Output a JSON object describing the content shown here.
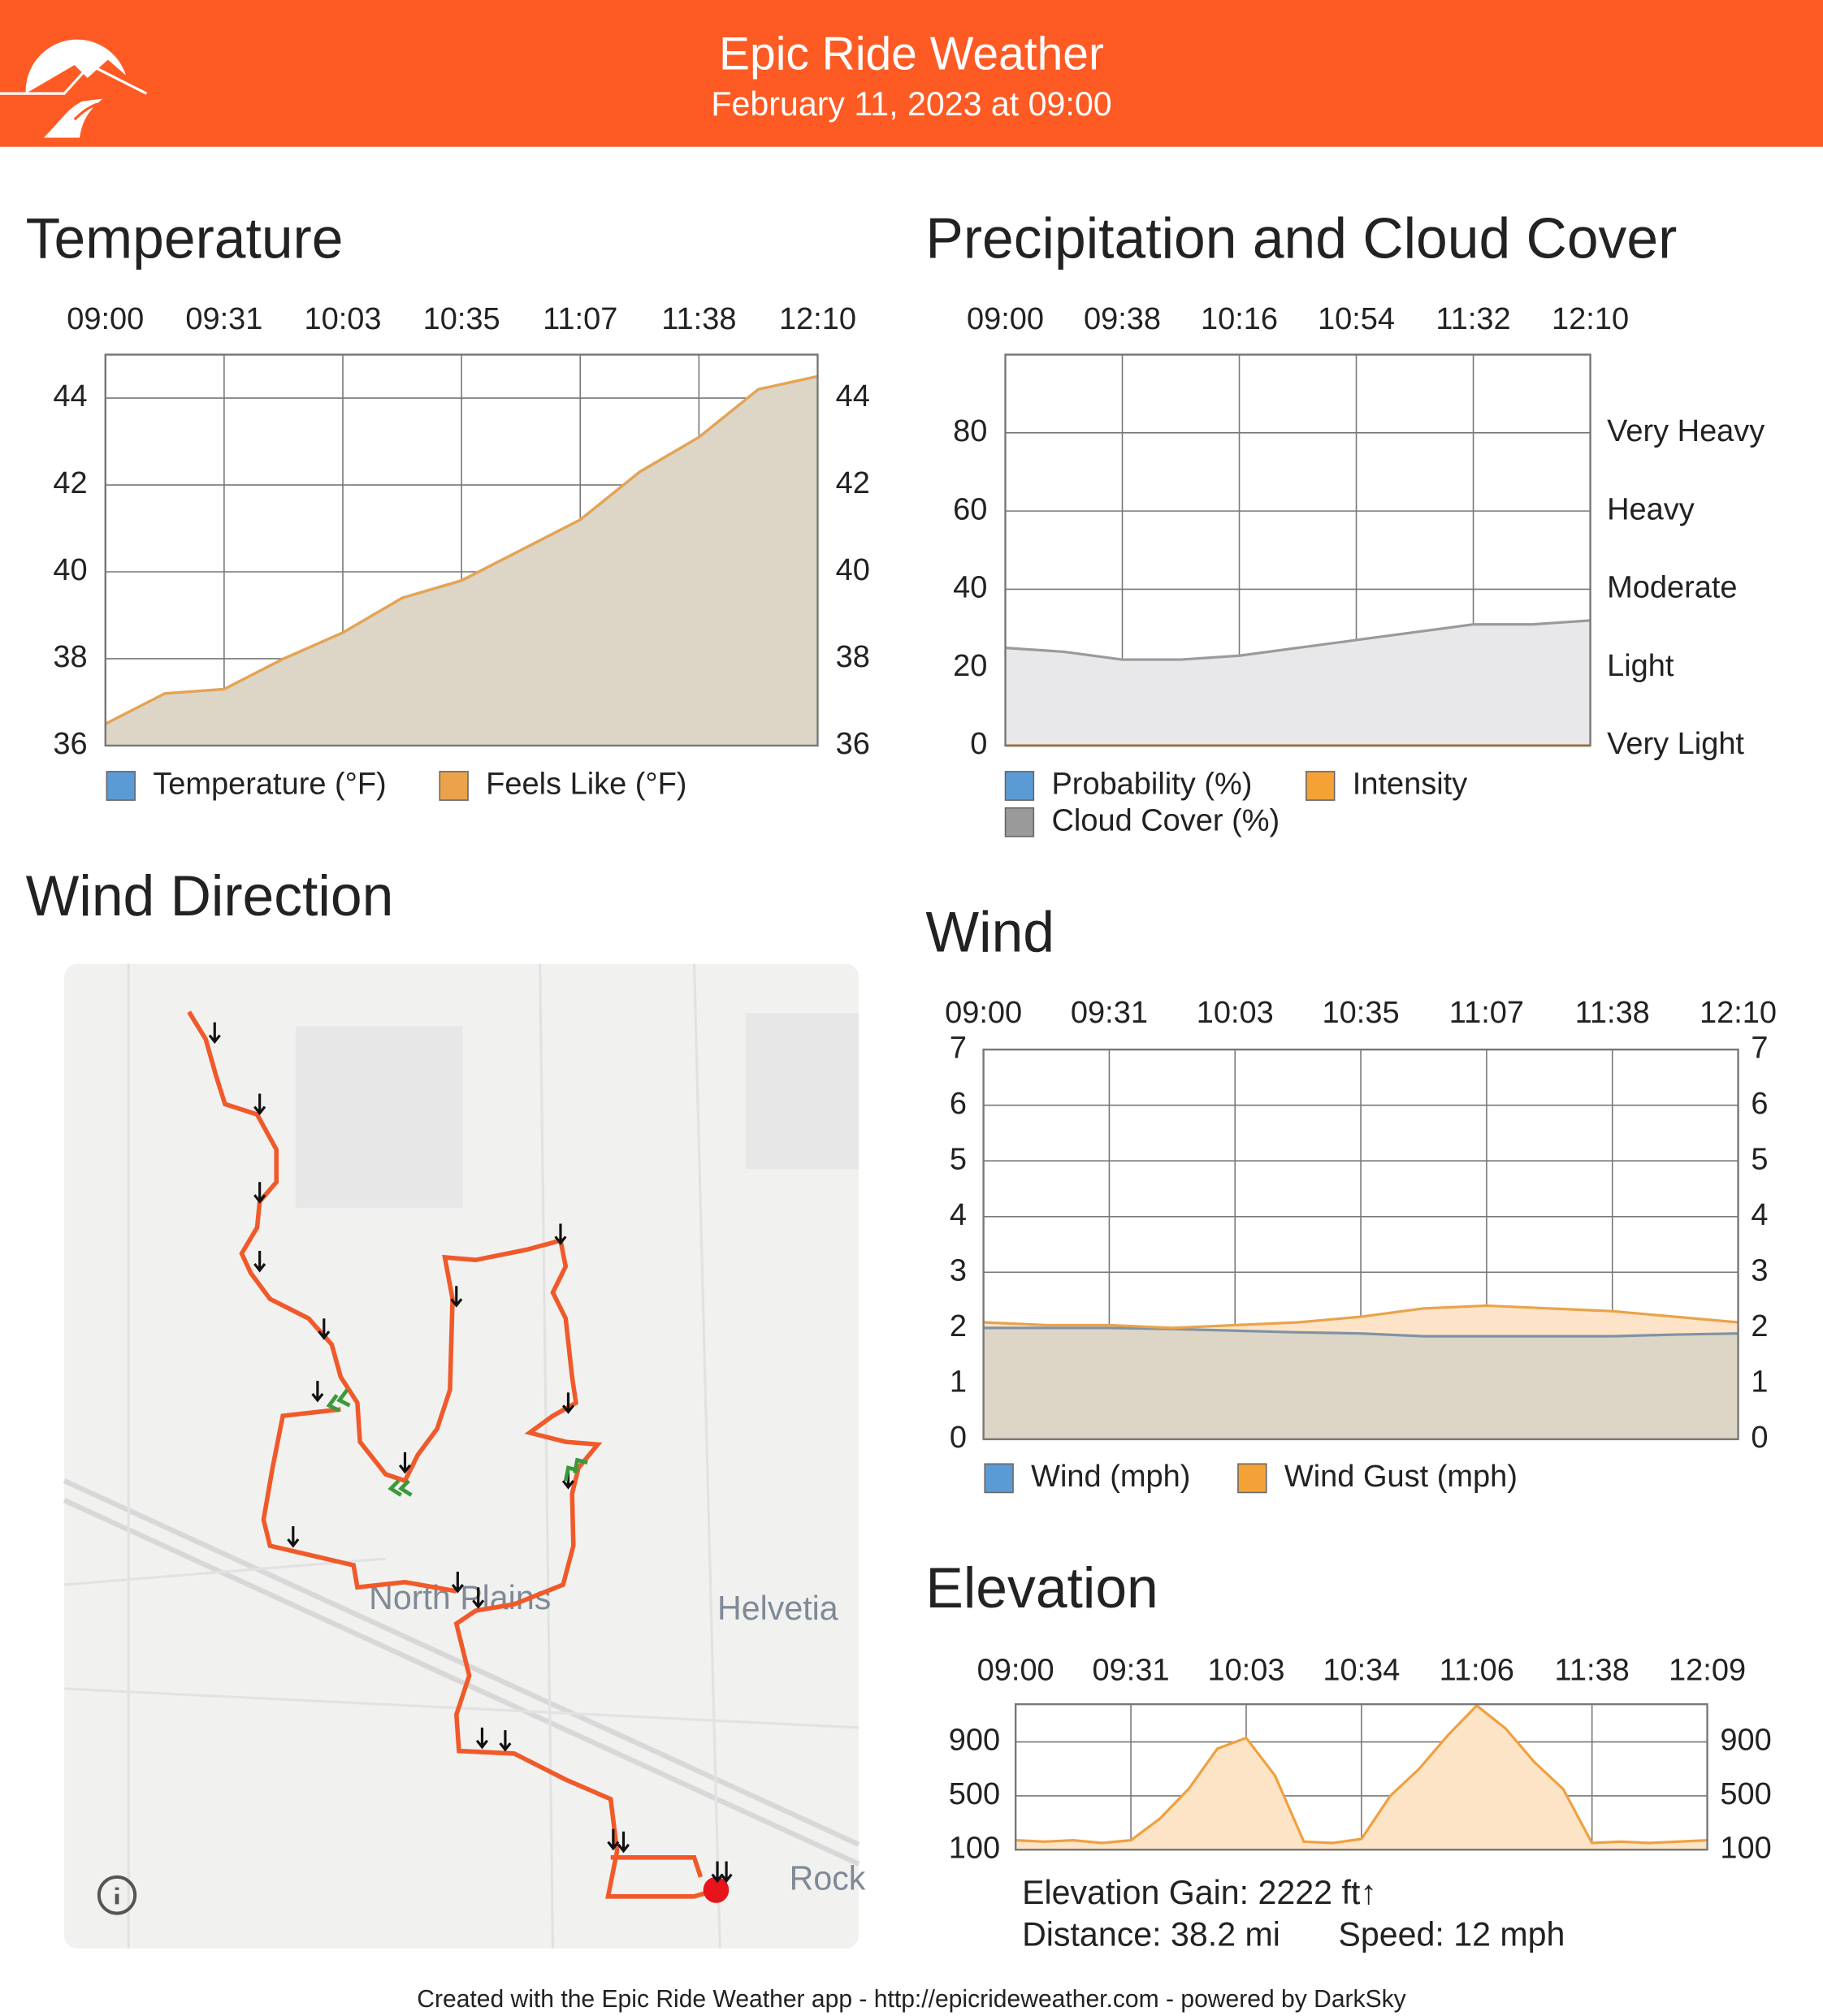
{
  "header": {
    "title": "Epic Ride Weather",
    "subtitle": "February 11, 2023 at 09:00"
  },
  "footer": "Created with the Epic Ride Weather app - http://epicrideweather.com - powered by DarkSky",
  "map": {
    "title": "Wind Direction",
    "labels": [
      "North Plains",
      "Helvetia",
      "Rock"
    ]
  },
  "chart_data": [
    {
      "type": "area",
      "title": "Temperature",
      "categories": [
        "09:00",
        null,
        "09:31",
        null,
        "10:03",
        null,
        "10:35",
        null,
        "11:07",
        null,
        "11:38",
        null,
        "12:10"
      ],
      "series": [
        {
          "name": "Temperature (°F)",
          "color": "#5b9bd5",
          "fill": "#ddd5c5",
          "values": [
            36.5,
            37.2,
            37.3,
            38.0,
            38.6,
            39.4,
            39.8,
            40.5,
            41.2,
            42.3,
            43.1,
            44.2,
            44.5
          ]
        },
        {
          "name": "Feels Like (°F)",
          "color": "#eaa34a",
          "fill": "#ddd5c5",
          "values": [
            36.5,
            37.2,
            37.3,
            38.0,
            38.6,
            39.4,
            39.8,
            40.5,
            41.2,
            42.3,
            43.1,
            44.2,
            44.5
          ]
        }
      ],
      "ylim": [
        36,
        45
      ],
      "yticks": [
        36,
        38,
        40,
        42,
        44
      ],
      "grid": true
    },
    {
      "type": "area",
      "title": "Precipitation and Cloud Cover",
      "categories": [
        "09:00",
        null,
        "09:38",
        null,
        "10:16",
        null,
        "10:54",
        null,
        "11:32",
        null,
        "12:10"
      ],
      "series": [
        {
          "name": "Probability (%)",
          "color": "#5b9bd5",
          "values": [
            0,
            0,
            0,
            0,
            0,
            0,
            0,
            0,
            0,
            0,
            0
          ]
        },
        {
          "name": "Intensity",
          "color": "#f4a236",
          "axis": "y2",
          "values": [
            0,
            0,
            0,
            0,
            0,
            0,
            0,
            0,
            0,
            0,
            0
          ]
        },
        {
          "name": "Cloud Cover (%)",
          "color": "#9a9a9a",
          "fill": "#e8e8ea",
          "values": [
            25,
            24,
            22,
            22,
            23,
            25,
            27,
            29,
            31,
            31,
            32
          ]
        }
      ],
      "ylim": [
        0,
        100
      ],
      "yticks": [
        0,
        20,
        40,
        60,
        80
      ],
      "y2lim": [
        0,
        100
      ],
      "y2ticks": [
        {
          "value": 0,
          "label": "Very Light"
        },
        {
          "value": 20,
          "label": "Light"
        },
        {
          "value": 40,
          "label": "Moderate"
        },
        {
          "value": 60,
          "label": "Heavy"
        },
        {
          "value": 80,
          "label": "Very Heavy"
        }
      ],
      "grid": true
    },
    {
      "type": "area",
      "title": "Wind",
      "categories": [
        "09:00",
        null,
        "09:31",
        null,
        "10:03",
        null,
        "10:35",
        null,
        "11:07",
        null,
        "11:38",
        null,
        "12:10"
      ],
      "series": [
        {
          "name": "Wind (mph)",
          "color": "#7f93a5",
          "swatch": "#5b9bd5",
          "fill": "#ddd5c5",
          "values": [
            2.0,
            2.0,
            2.0,
            1.98,
            1.95,
            1.92,
            1.9,
            1.85,
            1.85,
            1.85,
            1.85,
            1.88,
            1.9
          ]
        },
        {
          "name": "Wind Gust (mph)",
          "color": "#eaa34a",
          "swatch": "#f4a236",
          "fill": "#fde4c8",
          "values": [
            2.1,
            2.05,
            2.05,
            2.0,
            2.05,
            2.1,
            2.2,
            2.35,
            2.4,
            2.35,
            2.3,
            2.2,
            2.1
          ]
        }
      ],
      "ylim": [
        0,
        7
      ],
      "yticks": [
        0,
        1,
        2,
        3,
        4,
        5,
        6,
        7
      ],
      "grid": true
    },
    {
      "type": "area",
      "title": "Elevation",
      "categories": [
        "09:00",
        null,
        null,
        null,
        "09:31",
        null,
        null,
        null,
        "10:03",
        null,
        null,
        null,
        "10:34",
        null,
        null,
        null,
        "11:06",
        null,
        null,
        null,
        "11:38",
        null,
        null,
        null,
        "12:09"
      ],
      "series": [
        {
          "color": "#f0a040",
          "fill": "#fde4c6",
          "values": [
            170,
            160,
            170,
            150,
            170,
            330,
            550,
            850,
            930,
            650,
            160,
            150,
            180,
            500,
            700,
            950,
            1170,
            1000,
            750,
            550,
            150,
            160,
            150,
            160,
            170
          ]
        }
      ],
      "ylim": [
        100,
        1180
      ],
      "yticks": [
        100,
        500,
        900
      ],
      "grid": true,
      "annotations": [
        "Elevation Gain: 2222 ft↑",
        "Distance: 38.2 mi",
        "Speed: 12 mph"
      ]
    }
  ]
}
